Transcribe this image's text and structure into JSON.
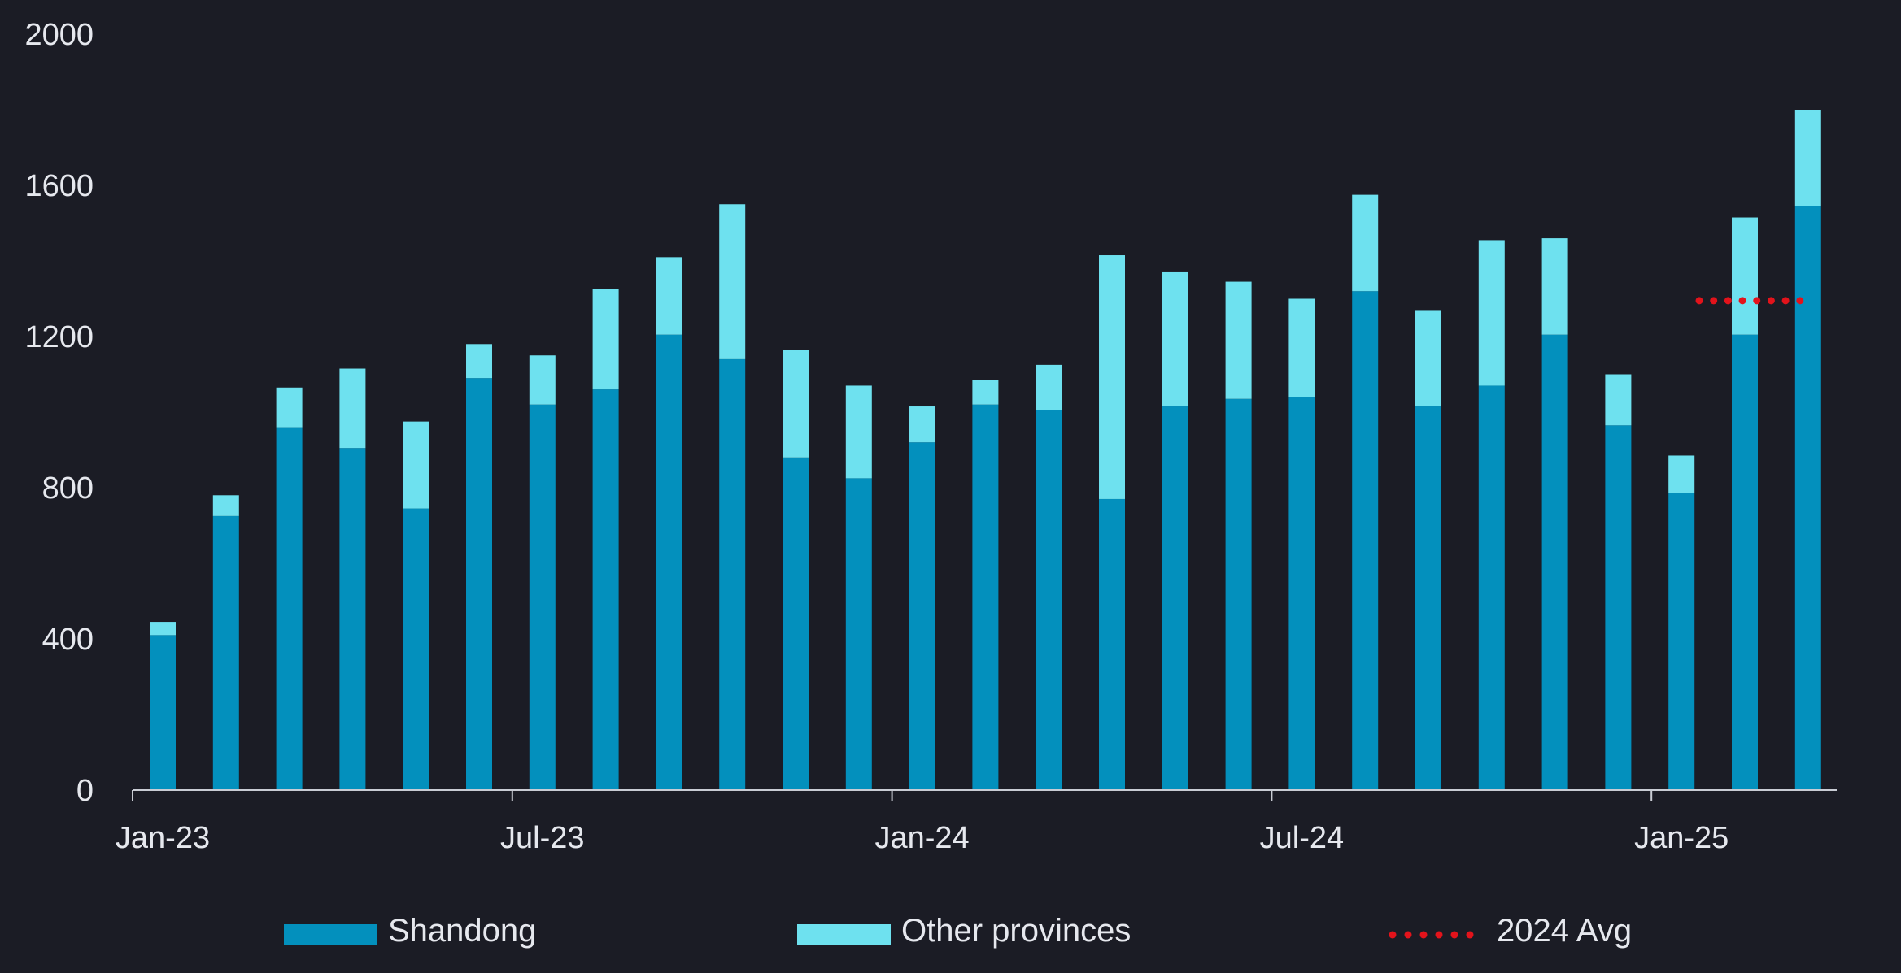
{
  "colors": {
    "background": "#1b1c25",
    "shandong": "#0390bd",
    "other_provinces": "#6ee1ef",
    "avg_line": "#e3131b",
    "axis": "#c9ccd4",
    "text": "#e6e8ee"
  },
  "chart_data": {
    "type": "bar",
    "stacked": true,
    "title": "",
    "xlabel": "",
    "ylabel": "",
    "ylim": [
      0,
      2000
    ],
    "y_ticks": [
      0,
      400,
      800,
      1200,
      1600,
      2000
    ],
    "y_tick_labels": [
      "0",
      "400",
      "800",
      "1200",
      "1600",
      "2000"
    ],
    "categories": [
      "Jan-23",
      "Feb-23",
      "Mar-23",
      "Apr-23",
      "May-23",
      "Jun-23",
      "Jul-23",
      "Aug-23",
      "Sep-23",
      "Oct-23",
      "Nov-23",
      "Dec-23",
      "Jan-24",
      "Feb-24",
      "Mar-24",
      "Apr-24",
      "May-24",
      "Jun-24",
      "Jul-24",
      "Aug-24",
      "Sep-24",
      "Oct-24",
      "Nov-24",
      "Dec-24",
      "Jan-25",
      "Feb-25",
      "Mar-25"
    ],
    "x_tick_labels": [
      "Jan-23",
      "Jul-23",
      "Jan-24",
      "Jul-24",
      "Jan-25"
    ],
    "series": [
      {
        "name": "Shandong",
        "values": [
          410,
          725,
          960,
          905,
          745,
          1090,
          1020,
          1060,
          1205,
          1140,
          880,
          825,
          920,
          1020,
          1005,
          770,
          1015,
          1035,
          1040,
          1320,
          1015,
          1070,
          1205,
          965,
          785,
          1205,
          1545
        ]
      },
      {
        "name": "Other provinces",
        "values": [
          35,
          55,
          105,
          210,
          230,
          90,
          130,
          265,
          205,
          410,
          285,
          245,
          95,
          65,
          120,
          645,
          355,
          310,
          260,
          255,
          255,
          385,
          255,
          135,
          100,
          310,
          255
        ]
      }
    ],
    "reference_line": {
      "name": "2024 Avg",
      "value": 1295,
      "x_start": "Feb-25",
      "x_end": "Mar-25"
    },
    "legend": {
      "position": "bottom",
      "items": [
        "Shandong",
        "Other provinces",
        "2024 Avg"
      ]
    },
    "grid": false
  }
}
